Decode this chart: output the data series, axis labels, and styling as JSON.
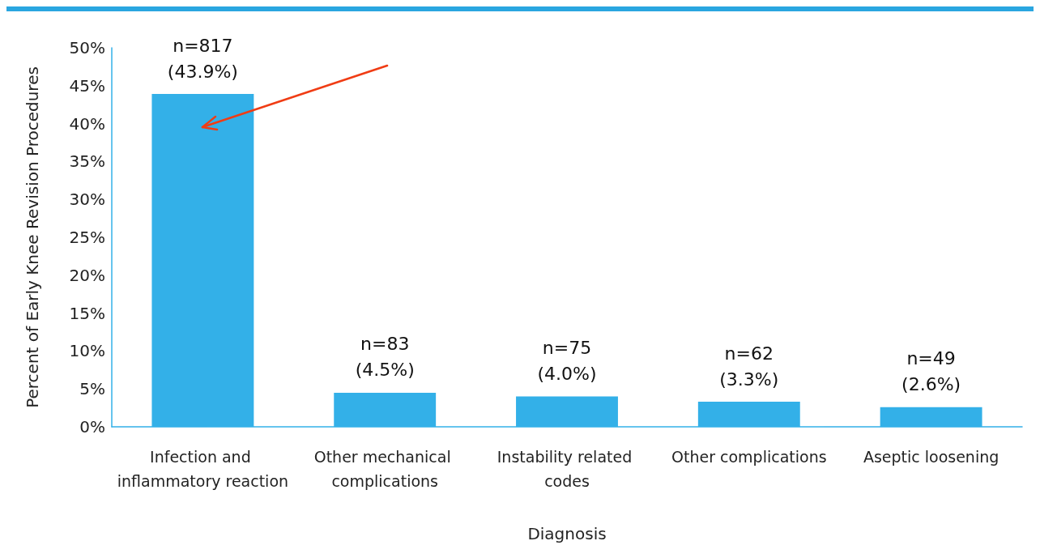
{
  "chart_data": {
    "type": "bar",
    "xlabel": "Diagnosis",
    "ylabel": "Percent of Early Knee Revision Procedures",
    "categories": [
      "Infection and inflammatory reaction",
      "Other mechanical complications",
      "Instability related codes",
      "Other complications",
      "Aseptic loosening"
    ],
    "values": [
      43.9,
      4.5,
      4.0,
      3.3,
      2.6
    ],
    "value_labels": [
      "n=817\n(43.9%)",
      "n=83\n(4.5%)",
      "n=75\n(4.0%)",
      "n=62\n(3.3%)",
      "n=49\n(2.6%)"
    ],
    "color": "#33b0e8",
    "ylim": [
      0,
      50
    ],
    "yticks": [
      {
        "value": 0,
        "label": "0%"
      },
      {
        "value": 5,
        "label": "5%"
      },
      {
        "value": 10,
        "label": "10%"
      },
      {
        "value": 15,
        "label": "15%"
      },
      {
        "value": 20,
        "label": "20%"
      },
      {
        "value": 25,
        "label": "25%"
      },
      {
        "value": 30,
        "label": "30%"
      },
      {
        "value": 35,
        "label": "35%"
      },
      {
        "value": 40,
        "label": "40%"
      },
      {
        "value": 45,
        "label": "45%"
      },
      {
        "value": 50,
        "label": "50%"
      }
    ],
    "grid": false
  }
}
